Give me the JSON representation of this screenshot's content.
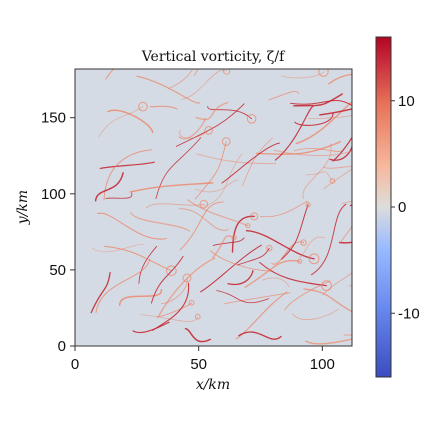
{
  "chart_data": {
    "type": "heatmap",
    "title": "Vertical vorticity, ζ/f",
    "xlabel": "x/km",
    "ylabel": "y/km",
    "xlim": [
      0,
      112
    ],
    "ylim": [
      0,
      182
    ],
    "x_ticks": [
      {
        "value": 0,
        "label": "0"
      },
      {
        "value": 50,
        "label": "50"
      },
      {
        "value": 100,
        "label": "100"
      }
    ],
    "y_ticks": [
      {
        "value": 0,
        "label": "0"
      },
      {
        "value": 50,
        "label": "50"
      },
      {
        "value": 100,
        "label": "100"
      },
      {
        "value": 150,
        "label": "150"
      }
    ],
    "colorbar": {
      "colormap": "coolwarm",
      "range": [
        -16,
        16
      ],
      "ticks": [
        {
          "value": 10,
          "label": "10"
        },
        {
          "value": 0,
          "label": "0"
        },
        {
          "value": -10,
          "label": "-10"
        }
      ]
    },
    "background_value_color": "#d4dbe4",
    "filament_color": "#ef8060",
    "core_color": "#c41e2a",
    "grid": false
  }
}
